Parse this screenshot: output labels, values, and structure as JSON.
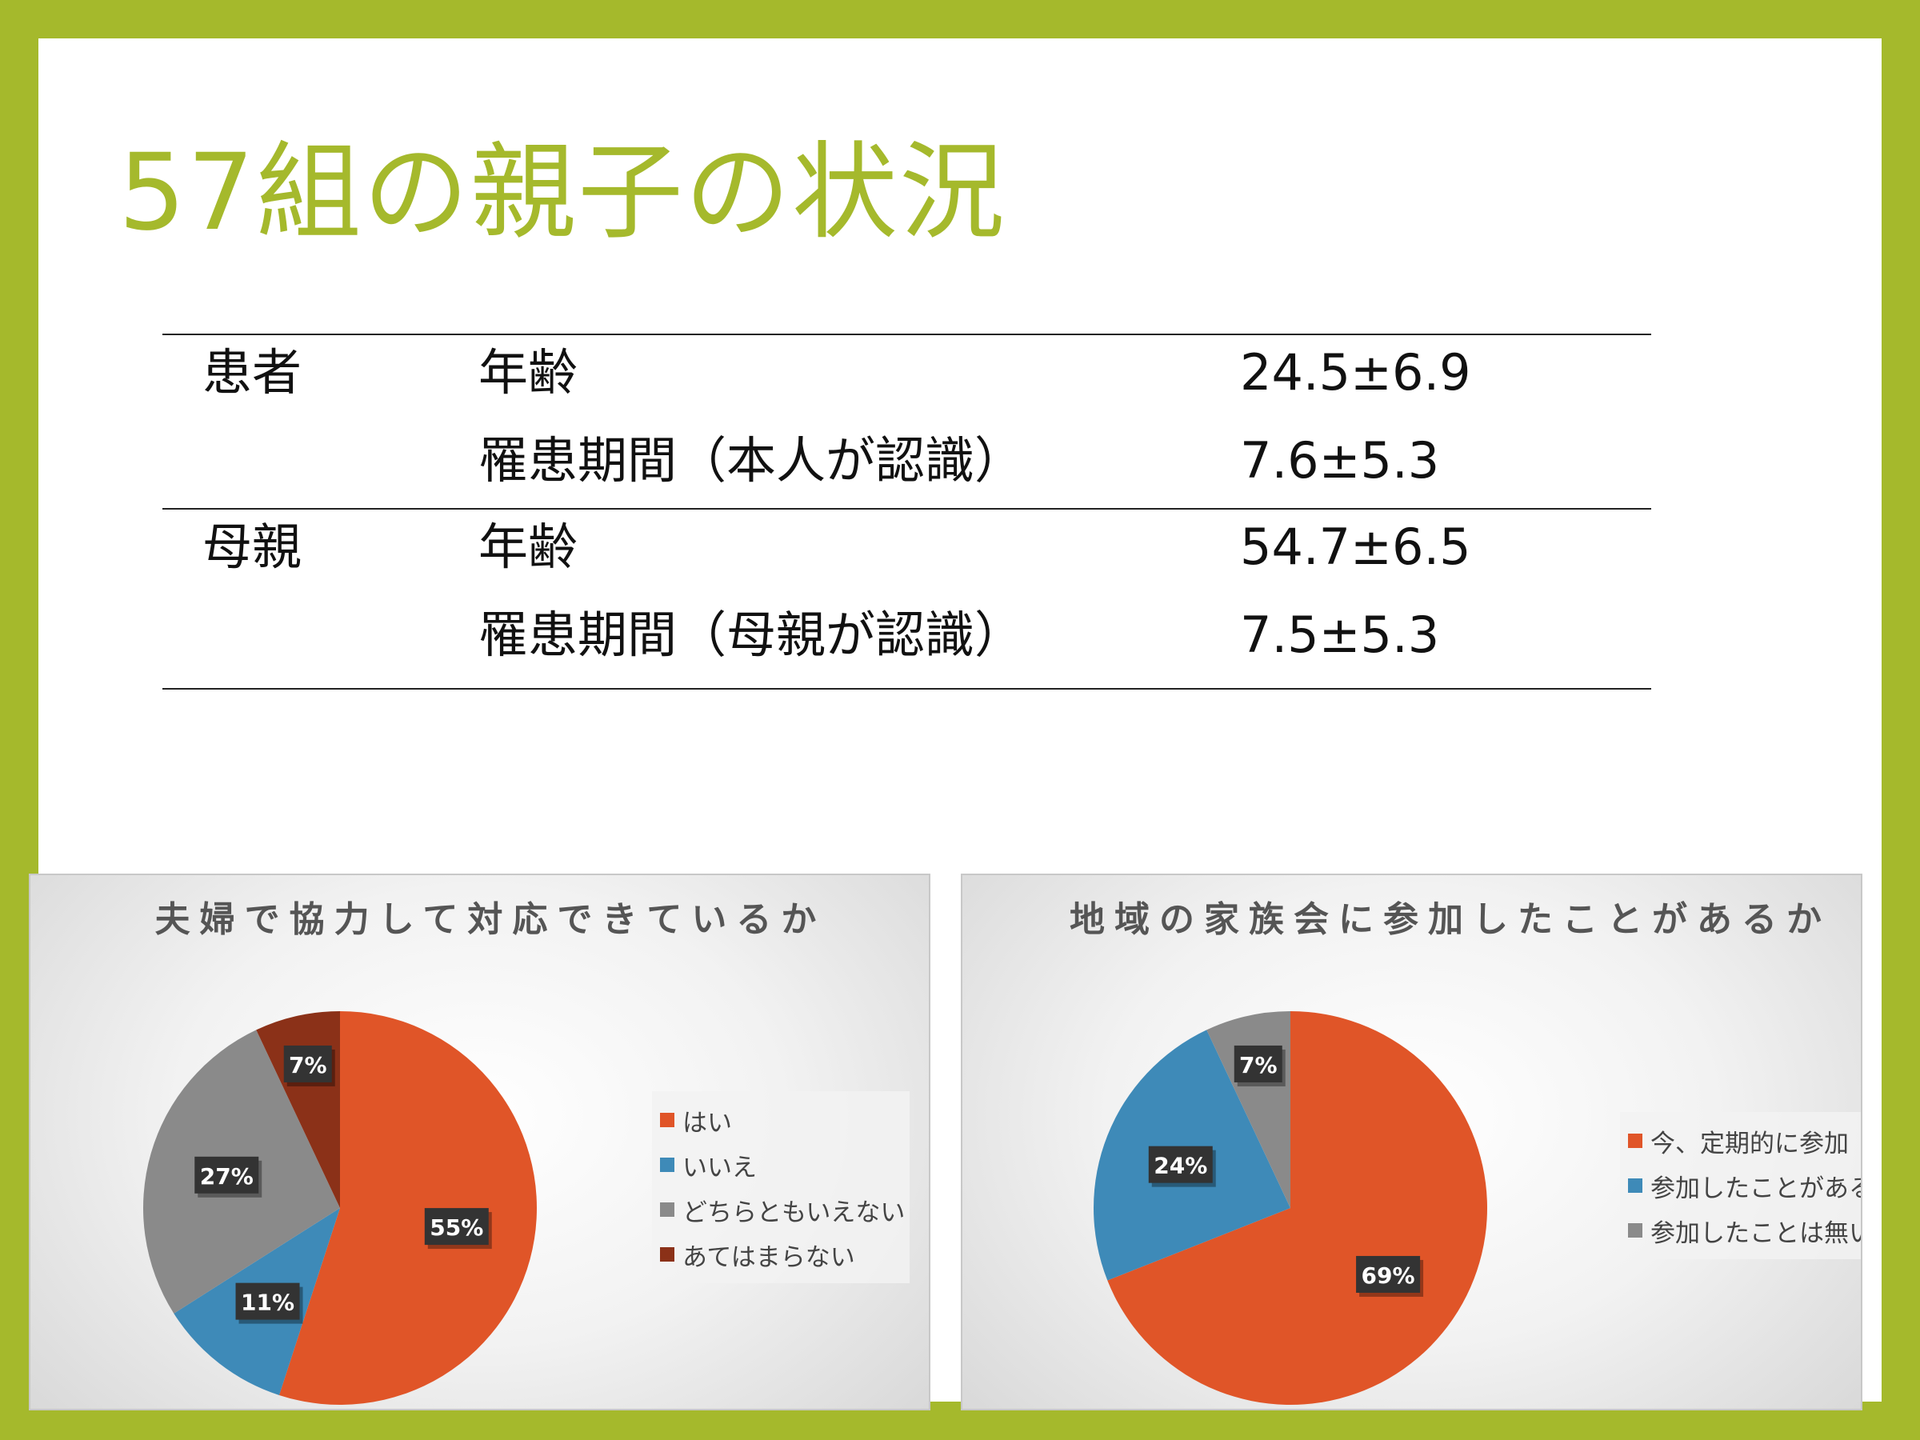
{
  "slide": {
    "title": "57組の親子の状況"
  },
  "table": {
    "patient": {
      "label": "患者",
      "rows": [
        {
          "item": "年齢",
          "value": "24.5±6.9"
        },
        {
          "item": "罹患期間（本人が認識）",
          "value": "7.6±5.3"
        }
      ]
    },
    "mother": {
      "label": "母親",
      "rows": [
        {
          "item": "年齢",
          "value": "54.7±6.5"
        },
        {
          "item": "罹患期間（母親が認識）",
          "value": "7.5±5.3"
        }
      ]
    }
  },
  "chart_data": [
    {
      "type": "pie",
      "title": "夫婦で協力して対応できているか",
      "categories": [
        "はい",
        "いいえ",
        "どちらともいえない",
        "あてはまらない"
      ],
      "values": [
        55,
        11,
        27,
        7
      ],
      "labels": [
        "55%",
        "11%",
        "27%",
        "7%"
      ],
      "colors": [
        "#e05528",
        "#3e8ab8",
        "#8a8a8a",
        "#8b3118"
      ],
      "legend": "right"
    },
    {
      "type": "pie",
      "title": "地域の家族会に参加したことがあるか",
      "categories": [
        "今、定期的に参加",
        "参加したことがある",
        "参加したことは無い"
      ],
      "values": [
        69,
        24,
        7
      ],
      "labels": [
        "69%",
        "24%",
        "7%"
      ],
      "colors": [
        "#e05528",
        "#3e8ab8",
        "#8a8a8a"
      ],
      "legend": "right"
    }
  ]
}
